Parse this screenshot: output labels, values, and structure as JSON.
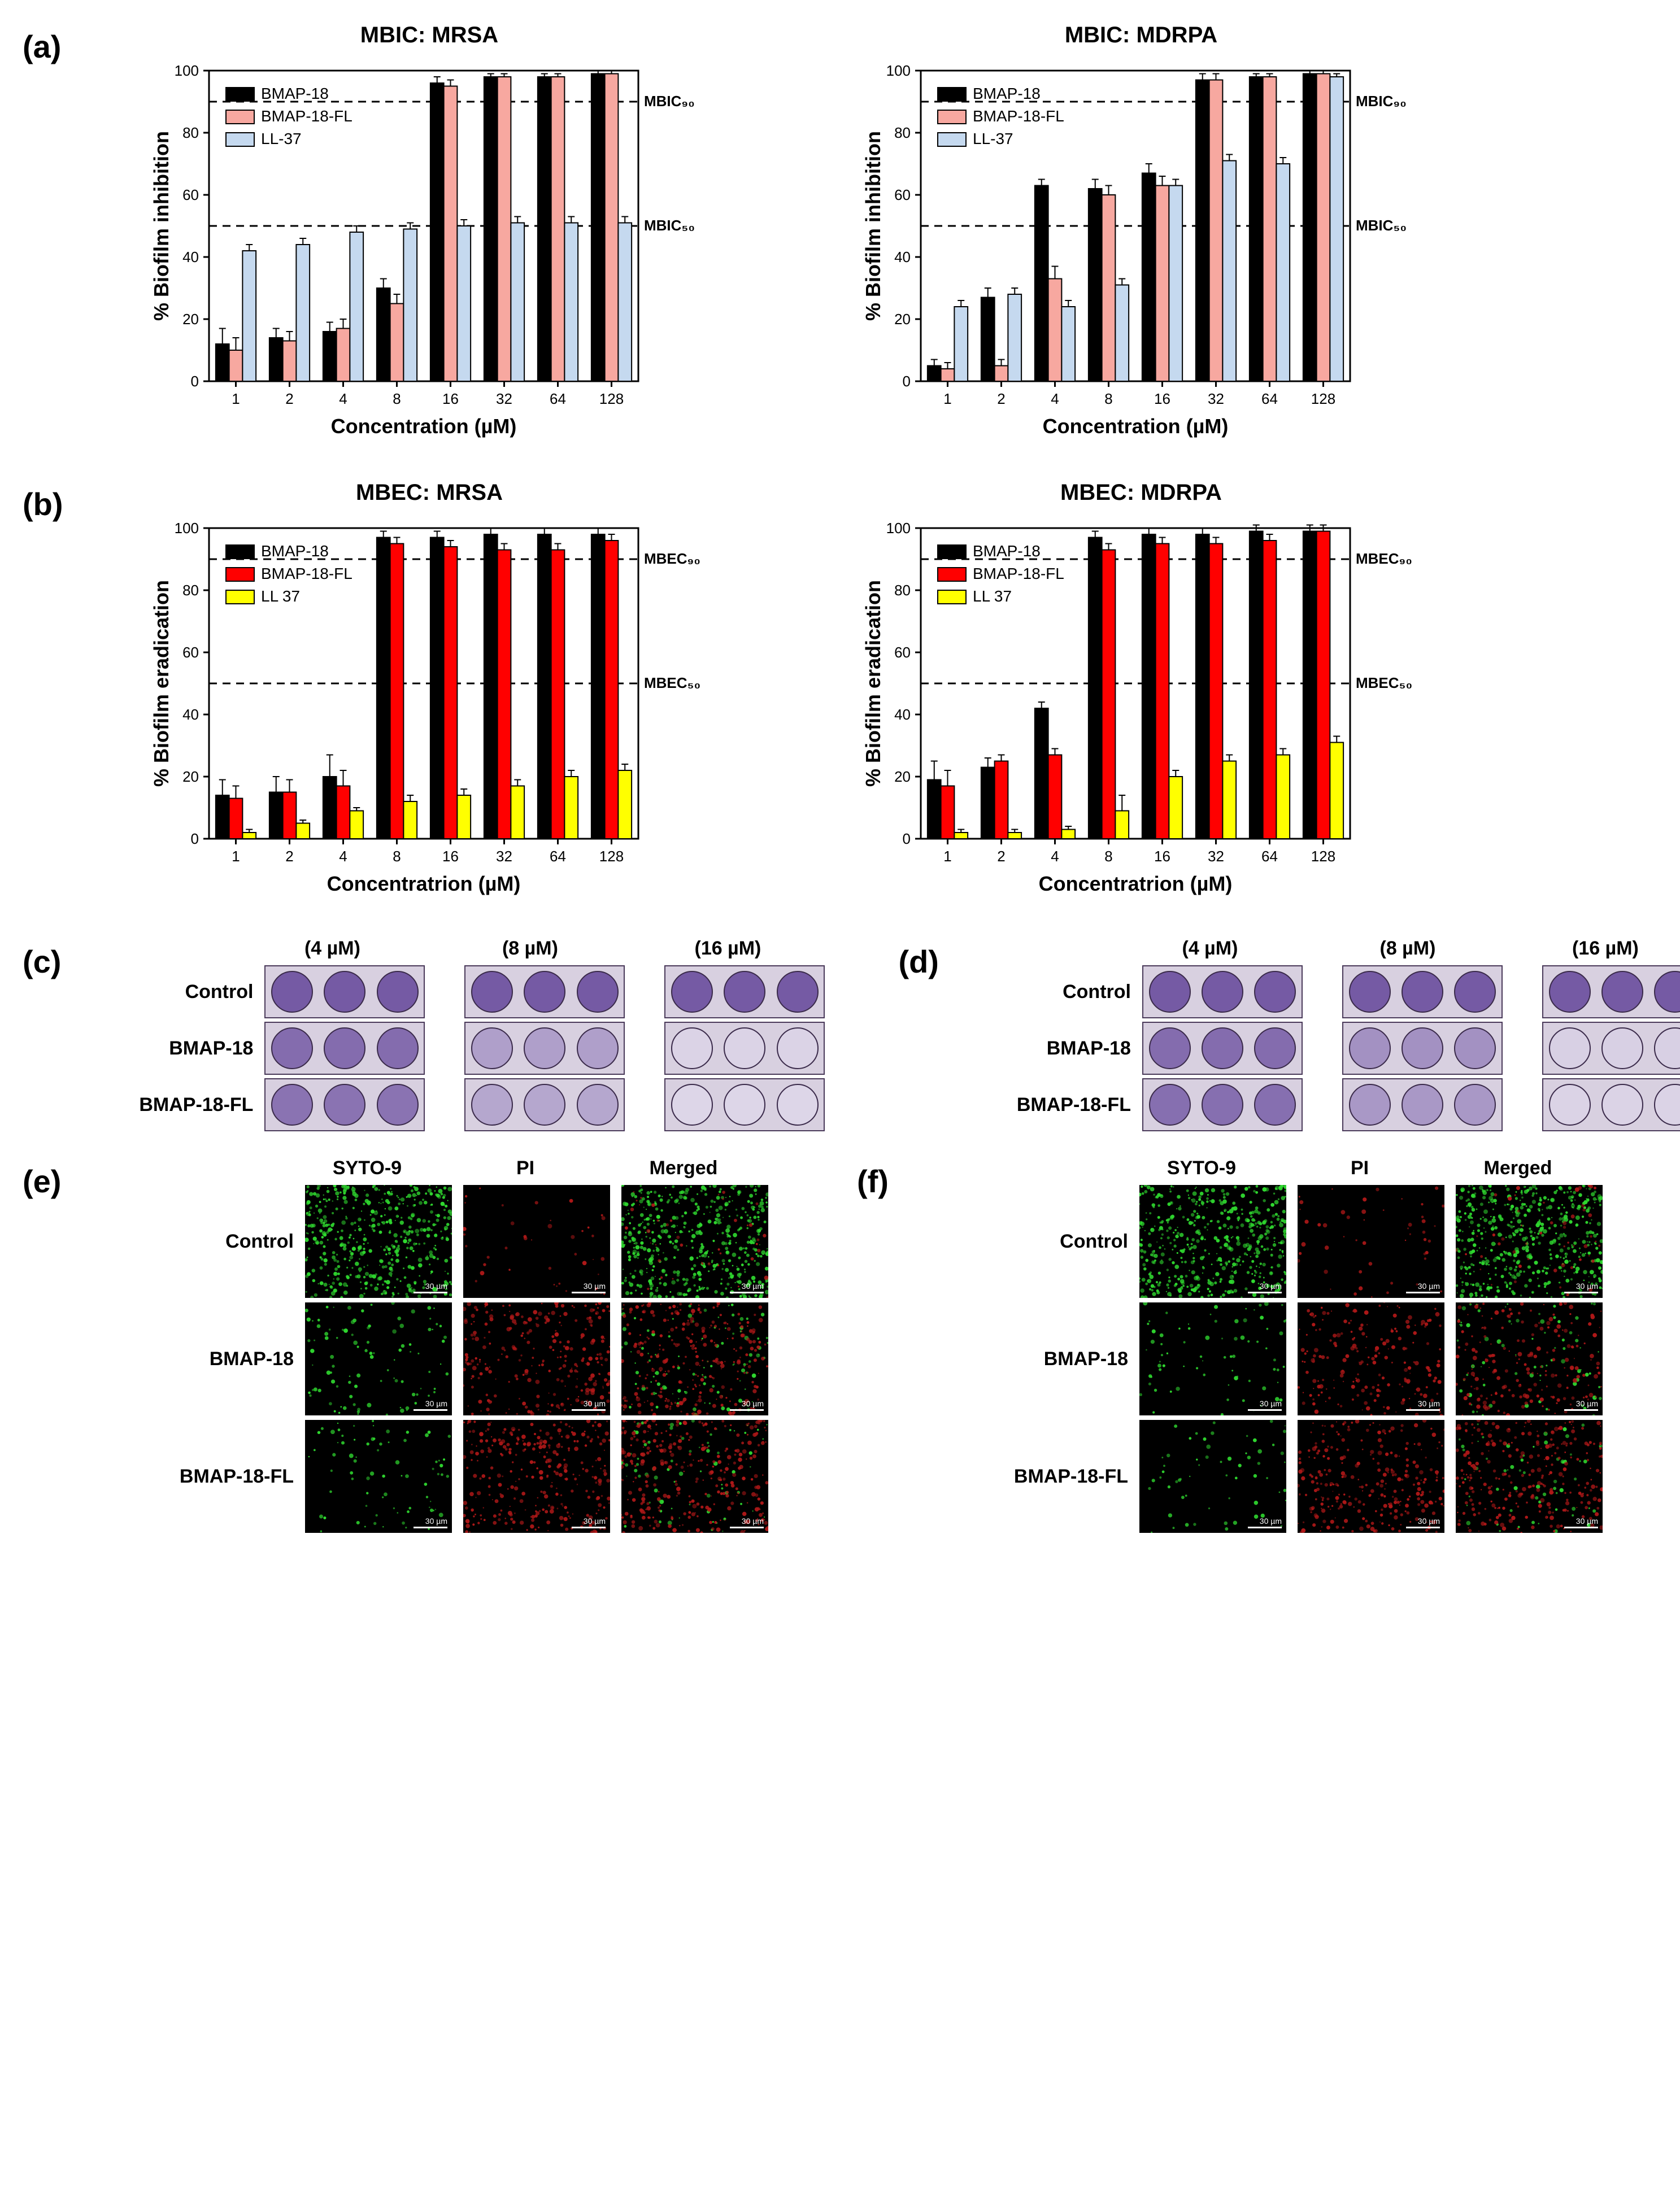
{
  "panel_a": {
    "label": "(a)",
    "left": {
      "title": "MBIC: MRSA",
      "type": "bar",
      "ylabel": "% Biofilm inhibition",
      "xlabel": "Concentration (µM)",
      "categories": [
        "1",
        "2",
        "4",
        "8",
        "16",
        "32",
        "64",
        "128"
      ],
      "series": [
        {
          "name": "BMAP-18",
          "color": "#000000",
          "values": [
            12,
            14,
            16,
            30,
            96,
            98,
            98,
            99
          ],
          "err": [
            5,
            3,
            3,
            3,
            2,
            1,
            1,
            1
          ]
        },
        {
          "name": "BMAP-18-FL",
          "color": "#f7a8a0",
          "values": [
            10,
            13,
            17,
            25,
            95,
            98,
            98,
            99
          ],
          "err": [
            4,
            3,
            3,
            3,
            2,
            1,
            1,
            1
          ]
        },
        {
          "name": "LL-37",
          "color": "#c5d9ef",
          "values": [
            42,
            44,
            48,
            49,
            50,
            51,
            51,
            51
          ],
          "err": [
            2,
            2,
            2,
            2,
            2,
            2,
            2,
            2
          ]
        }
      ],
      "ylim": [
        0,
        100
      ],
      "yticks": [
        0,
        20,
        40,
        60,
        80,
        100
      ],
      "ref_lines": [
        {
          "y": 90,
          "label": "MBIC₉₀"
        },
        {
          "y": 50,
          "label": "MBIC₅₀"
        }
      ],
      "legend_pos": "upper-left-inside"
    },
    "right": {
      "title": "MBIC: MDRPA",
      "type": "bar",
      "ylabel": "% Biofilm inhibition",
      "xlabel": "Concentration (µM)",
      "categories": [
        "1",
        "2",
        "4",
        "8",
        "16",
        "32",
        "64",
        "128"
      ],
      "series": [
        {
          "name": "BMAP-18",
          "color": "#000000",
          "values": [
            5,
            27,
            63,
            62,
            67,
            97,
            98,
            99
          ],
          "err": [
            2,
            3,
            2,
            3,
            3,
            2,
            1,
            1
          ]
        },
        {
          "name": "BMAP-18-FL",
          "color": "#f7a8a0",
          "values": [
            4,
            5,
            33,
            60,
            63,
            97,
            98,
            99
          ],
          "err": [
            2,
            2,
            4,
            3,
            3,
            2,
            1,
            1
          ]
        },
        {
          "name": "LL-37",
          "color": "#c5d9ef",
          "values": [
            24,
            28,
            24,
            31,
            63,
            71,
            70,
            98
          ],
          "err": [
            2,
            2,
            2,
            2,
            2,
            2,
            2,
            1
          ]
        }
      ],
      "ylim": [
        0,
        100
      ],
      "yticks": [
        0,
        20,
        40,
        60,
        80,
        100
      ],
      "ref_lines": [
        {
          "y": 90,
          "label": "MBIC₉₀"
        },
        {
          "y": 50,
          "label": "MBIC₅₀"
        }
      ],
      "legend_pos": "upper-left-inside"
    }
  },
  "panel_b": {
    "label": "(b)",
    "left": {
      "title": "MBEC: MRSA",
      "type": "bar",
      "ylabel": "% Biofilm eradication",
      "xlabel": "Concentratrion (µM)",
      "categories": [
        "1",
        "2",
        "4",
        "8",
        "16",
        "32",
        "64",
        "128"
      ],
      "series": [
        {
          "name": "BMAP-18",
          "color": "#000000",
          "values": [
            14,
            15,
            20,
            97,
            97,
            98,
            98,
            98
          ],
          "err": [
            5,
            5,
            7,
            2,
            2,
            2,
            2,
            2
          ]
        },
        {
          "name": "BMAP-18-FL",
          "color": "#ff0000",
          "values": [
            13,
            15,
            17,
            95,
            94,
            93,
            93,
            96
          ],
          "err": [
            4,
            4,
            5,
            2,
            2,
            2,
            2,
            2
          ]
        },
        {
          "name": "LL 37",
          "color": "#ffff00",
          "values": [
            2,
            5,
            9,
            12,
            14,
            17,
            20,
            22
          ],
          "err": [
            1,
            1,
            1,
            2,
            2,
            2,
            2,
            2
          ]
        }
      ],
      "ylim": [
        0,
        100
      ],
      "yticks": [
        0,
        20,
        40,
        60,
        80,
        100
      ],
      "ref_lines": [
        {
          "y": 90,
          "label": "MBEC₉₀"
        },
        {
          "y": 50,
          "label": "MBEC₅₀"
        }
      ],
      "legend_pos": "upper-left-inside"
    },
    "right": {
      "title": "MBEC: MDRPA",
      "type": "bar",
      "ylabel": "% Biofilm eradication",
      "xlabel": "Concentratrion (µM)",
      "categories": [
        "1",
        "2",
        "4",
        "8",
        "16",
        "32",
        "64",
        "128"
      ],
      "series": [
        {
          "name": "BMAP-18",
          "color": "#000000",
          "values": [
            19,
            23,
            42,
            97,
            98,
            98,
            99,
            99
          ],
          "err": [
            6,
            3,
            2,
            2,
            2,
            2,
            2,
            2
          ]
        },
        {
          "name": "BMAP-18-FL",
          "color": "#ff0000",
          "values": [
            17,
            25,
            27,
            93,
            95,
            95,
            96,
            99
          ],
          "err": [
            5,
            2,
            2,
            2,
            2,
            2,
            2,
            2
          ]
        },
        {
          "name": "LL 37",
          "color": "#ffff00",
          "values": [
            2,
            2,
            3,
            9,
            20,
            25,
            27,
            31
          ],
          "err": [
            1,
            1,
            1,
            5,
            2,
            2,
            2,
            2
          ]
        }
      ],
      "ylim": [
        0,
        100
      ],
      "yticks": [
        0,
        20,
        40,
        60,
        80,
        100
      ],
      "ref_lines": [
        {
          "y": 90,
          "label": "MBEC₉₀"
        },
        {
          "y": 50,
          "label": "MBEC₅₀"
        }
      ],
      "legend_pos": "upper-left-inside"
    }
  },
  "panel_c": {
    "label": "(c)",
    "col_headers": [
      "(4 µM)",
      "(8 µM)",
      "(16 µM)"
    ],
    "rows": [
      {
        "label": "Control",
        "intensity": [
          0.92,
          0.92,
          0.92
        ]
      },
      {
        "label": "BMAP-18",
        "intensity": [
          0.8,
          0.45,
          0.1
        ]
      },
      {
        "label": "BMAP-18-FL",
        "intensity": [
          0.75,
          0.4,
          0.08
        ]
      }
    ],
    "well_color_dark": "#6b4e9e",
    "well_color_light": "#e7e2ee"
  },
  "panel_d": {
    "label": "(d)",
    "col_headers": [
      "(4 µM)",
      "(8 µM)",
      "(16 µM)"
    ],
    "rows": [
      {
        "label": "Control",
        "intensity": [
          0.92,
          0.92,
          0.92
        ]
      },
      {
        "label": "BMAP-18",
        "intensity": [
          0.8,
          0.55,
          0.12
        ]
      },
      {
        "label": "BMAP-18-FL",
        "intensity": [
          0.78,
          0.5,
          0.1
        ]
      }
    ],
    "well_color_dark": "#6b4e9e",
    "well_color_light": "#e7e2ee"
  },
  "panel_e": {
    "label": "(e)",
    "col_headers": [
      "SYTO-9",
      "PI",
      "Merged"
    ],
    "scale_label": "30 µm",
    "rows": [
      {
        "label": "Control",
        "green": 0.95,
        "red": 0.08
      },
      {
        "label": "BMAP-18",
        "green": 0.2,
        "red": 0.55
      },
      {
        "label": "BMAP-18-FL",
        "green": 0.15,
        "red": 0.6
      }
    ],
    "green_color": "#2fd82f",
    "red_color": "#b01818"
  },
  "panel_f": {
    "label": "(f)",
    "col_headers": [
      "SYTO-9",
      "PI",
      "Merged"
    ],
    "scale_label": "30 µm",
    "rows": [
      {
        "label": "Control",
        "green": 0.98,
        "red": 0.1
      },
      {
        "label": "BMAP-18",
        "green": 0.15,
        "red": 0.4
      },
      {
        "label": "BMAP-18-FL",
        "green": 0.12,
        "red": 0.55
      }
    ],
    "green_color": "#2fd82f",
    "red_color": "#b01818"
  },
  "style": {
    "axis_color": "#000000",
    "tick_fontsize": 26,
    "label_fontsize": 36,
    "title_fontsize": 40,
    "legend_fontsize": 28,
    "bar_group_width": 0.75,
    "bar_stroke": "#000000",
    "grid_color": "none",
    "background": "#ffffff"
  }
}
